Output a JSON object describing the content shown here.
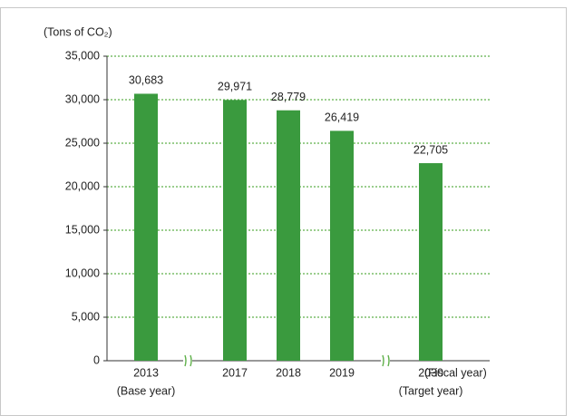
{
  "chart_data": {
    "type": "bar",
    "y_axis_label": "(Tons of CO₂)",
    "x_axis_label": "(Fiscal year)",
    "categories": [
      "2013",
      "2017",
      "2018",
      "2019",
      "2030"
    ],
    "category_sublabels": [
      "(Base year)",
      null,
      null,
      null,
      "(Target year)"
    ],
    "values": [
      30683,
      29971,
      28779,
      26419,
      22705
    ],
    "value_labels": [
      "30,683",
      "29,971",
      "28,779",
      "26,419",
      "22,705"
    ],
    "color": "#3a9a3e",
    "ylim": [
      0,
      35000
    ],
    "yticks": [
      0,
      {
        "value": 5000,
        "label": "5,000"
      },
      {
        "value": 10000,
        "label": "10,000"
      },
      {
        "value": 15000,
        "label": "15,000"
      },
      {
        "value": 20000,
        "label": "20,000"
      },
      {
        "value": 25000,
        "label": "25,000"
      },
      {
        "value": 30000,
        "label": "30,000"
      },
      {
        "value": 35000,
        "label": "35,000"
      }
    ],
    "grid": true
  }
}
